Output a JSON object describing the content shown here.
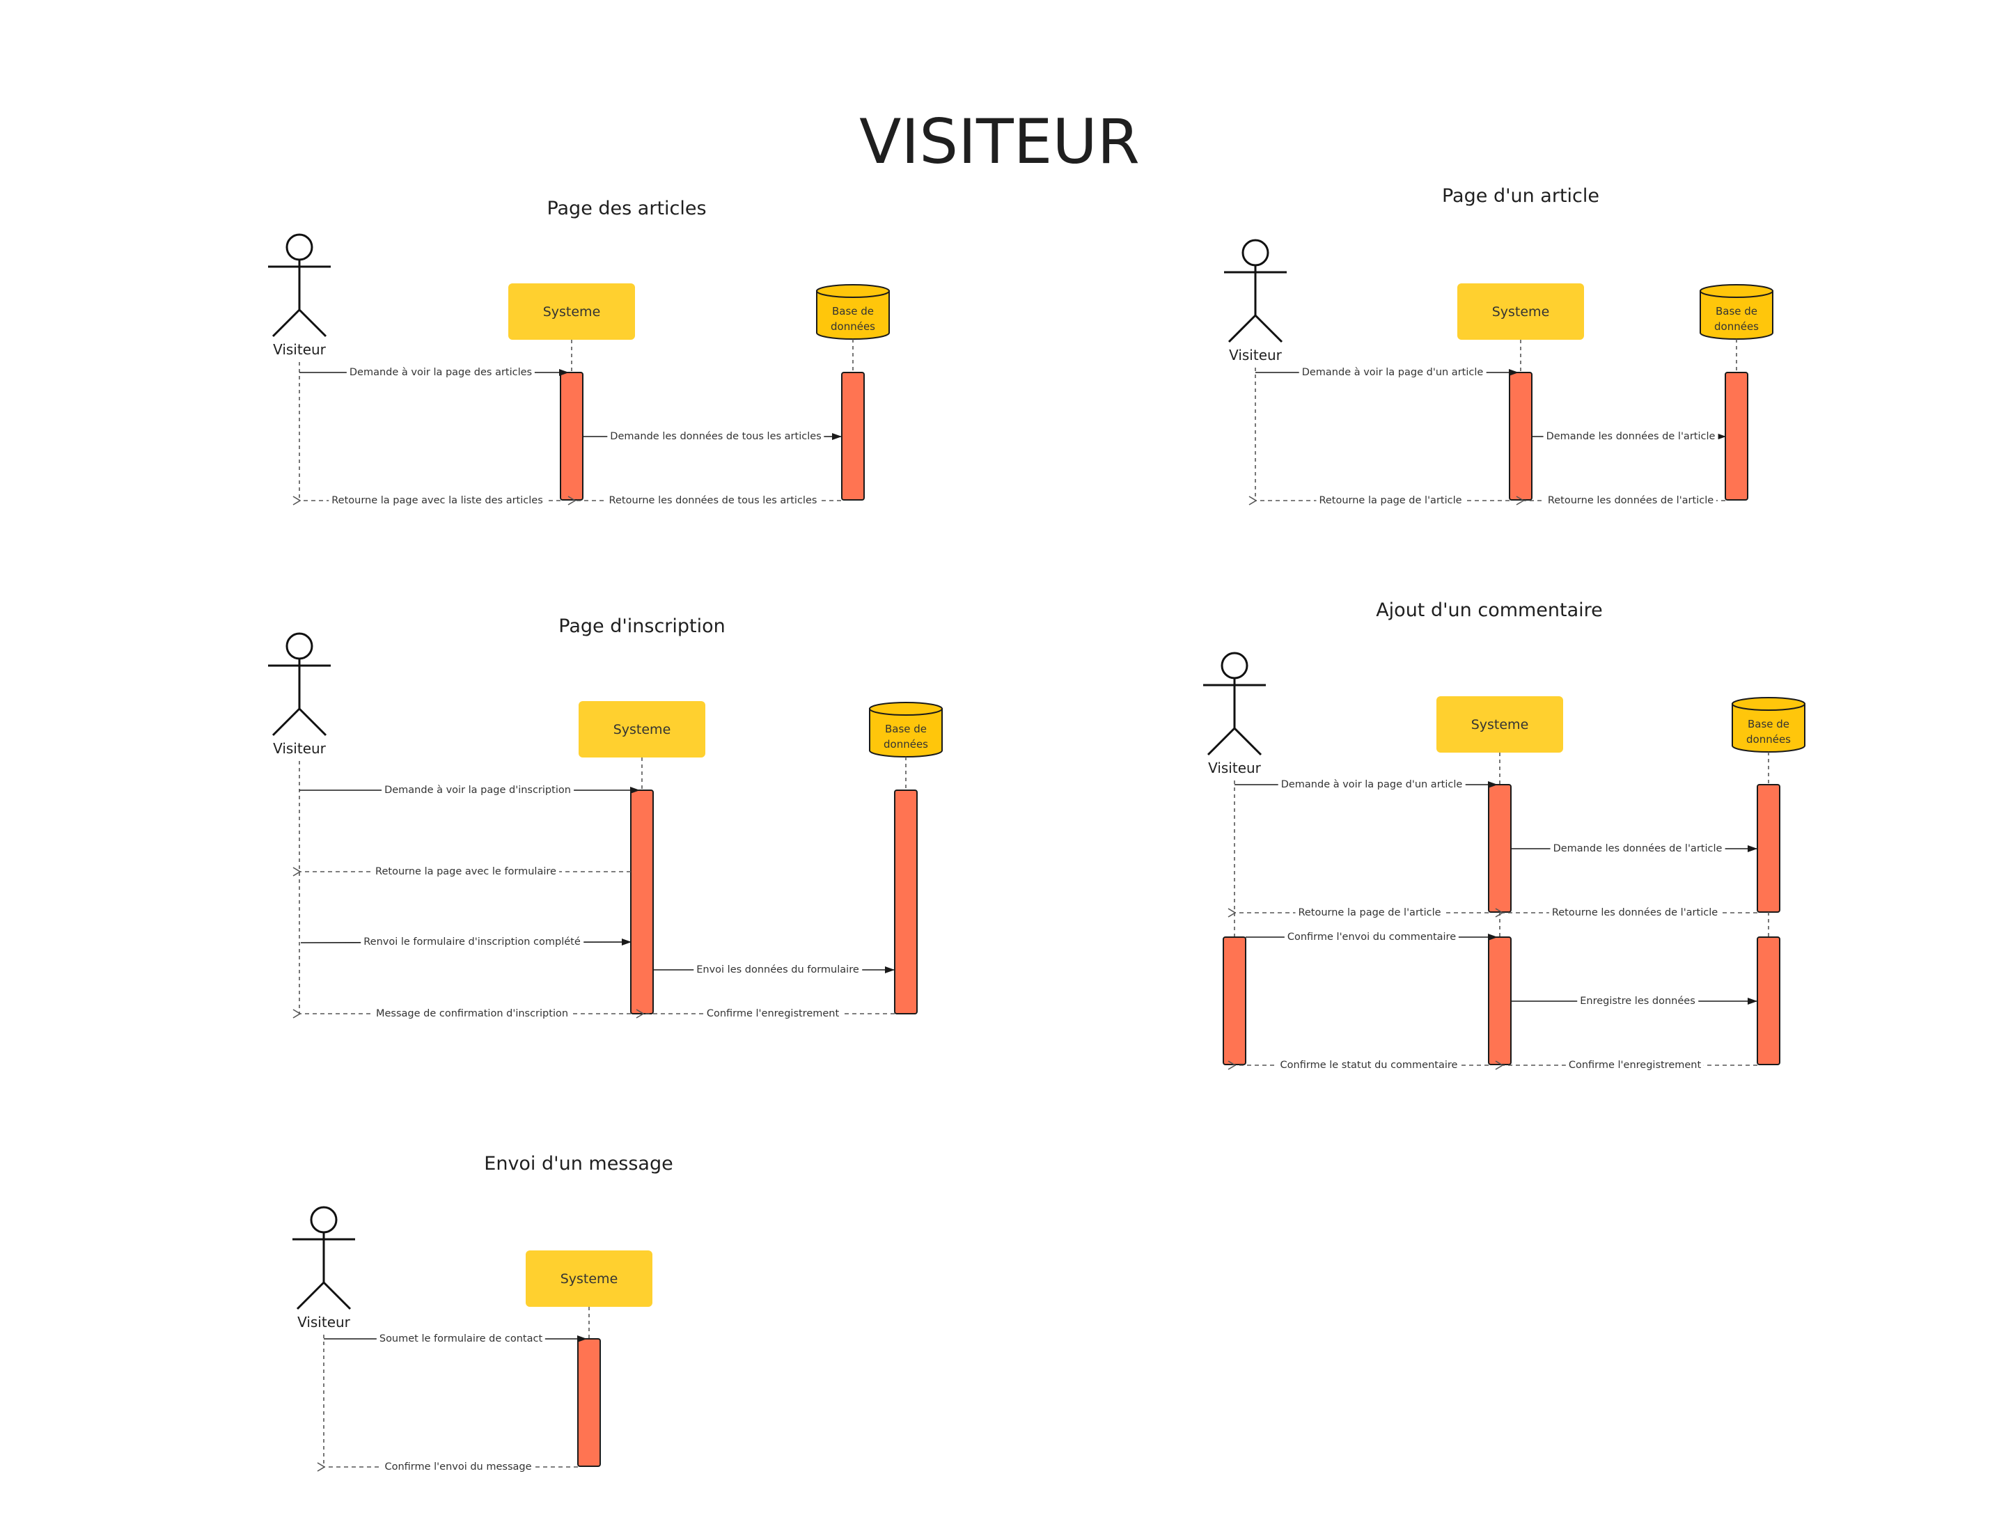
{
  "title": "VISITEUR",
  "labels": {
    "actor": "Visiteur",
    "systeme": "Systeme",
    "db_line1": "Base de",
    "db_line2": "données"
  },
  "diagrams": [
    {
      "title": "Page des articles",
      "messages": [
        "Demande à voir la page des articles",
        "Demande les données de tous les articles",
        "Retourne la page avec la liste des articles",
        "Retourne les données de tous les articles"
      ]
    },
    {
      "title": "Page d'un article",
      "messages": [
        "Demande à voir la page d'un article",
        "Demande les données de l'article",
        "Retourne la page de l'article",
        "Retourne les données de l'article"
      ]
    },
    {
      "title": "Page d'inscription",
      "messages": [
        "Demande à voir la page d'inscription",
        "Retourne la page avec le formulaire",
        "Renvoi le formulaire d'inscription complété",
        "Envoi les données du formulaire",
        "Message de confirmation d'inscription",
        "Confirme l'enregistrement"
      ]
    },
    {
      "title": "Ajout d'un commentaire",
      "messages": [
        "Demande à voir la page d'un article",
        "Demande les données de l'article",
        "Retourne la page de l'article",
        "Retourne les données de l'article",
        "Confirme l'envoi du commentaire",
        "Enregistre les données",
        "Confirme le statut du commentaire",
        "Confirme l'enregistrement"
      ]
    },
    {
      "title": "Envoi d'un message",
      "messages": [
        "Soumet le formulaire de contact",
        "Confirme l'envoi du message"
      ]
    }
  ]
}
